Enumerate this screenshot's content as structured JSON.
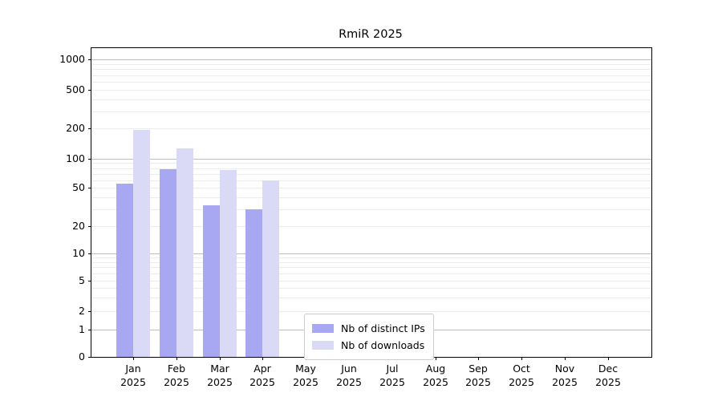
{
  "chart_data": {
    "type": "bar",
    "title": "RmiR 2025",
    "categories": [
      "Jan 2025",
      "Feb 2025",
      "Mar 2025",
      "Apr 2025",
      "May 2025",
      "Jun 2025",
      "Jul 2025",
      "Aug 2025",
      "Sep 2025",
      "Oct 2025",
      "Nov 2025",
      "Dec 2025"
    ],
    "series": [
      {
        "name": "Nb of distinct IPs",
        "color": "#a7a7f2",
        "values": [
          55,
          78,
          33,
          30,
          0,
          0,
          0,
          0,
          0,
          0,
          0,
          0
        ]
      },
      {
        "name": "Nb of downloads",
        "color": "#dadaf7",
        "values": [
          193,
          127,
          77,
          60,
          0,
          0,
          0,
          0,
          0,
          0,
          0,
          0
        ]
      }
    ],
    "yscale": "symlog",
    "ylim": [
      0,
      1300
    ],
    "y_ticks": [
      0,
      1,
      2,
      5,
      10,
      20,
      50,
      100,
      200,
      500,
      1000
    ],
    "grid": true,
    "legend_position": "lower center"
  },
  "colors": {
    "grid_major": "#bdbdbd",
    "grid_minor": "#ececec",
    "spine": "#000000",
    "background": "#ffffff"
  }
}
